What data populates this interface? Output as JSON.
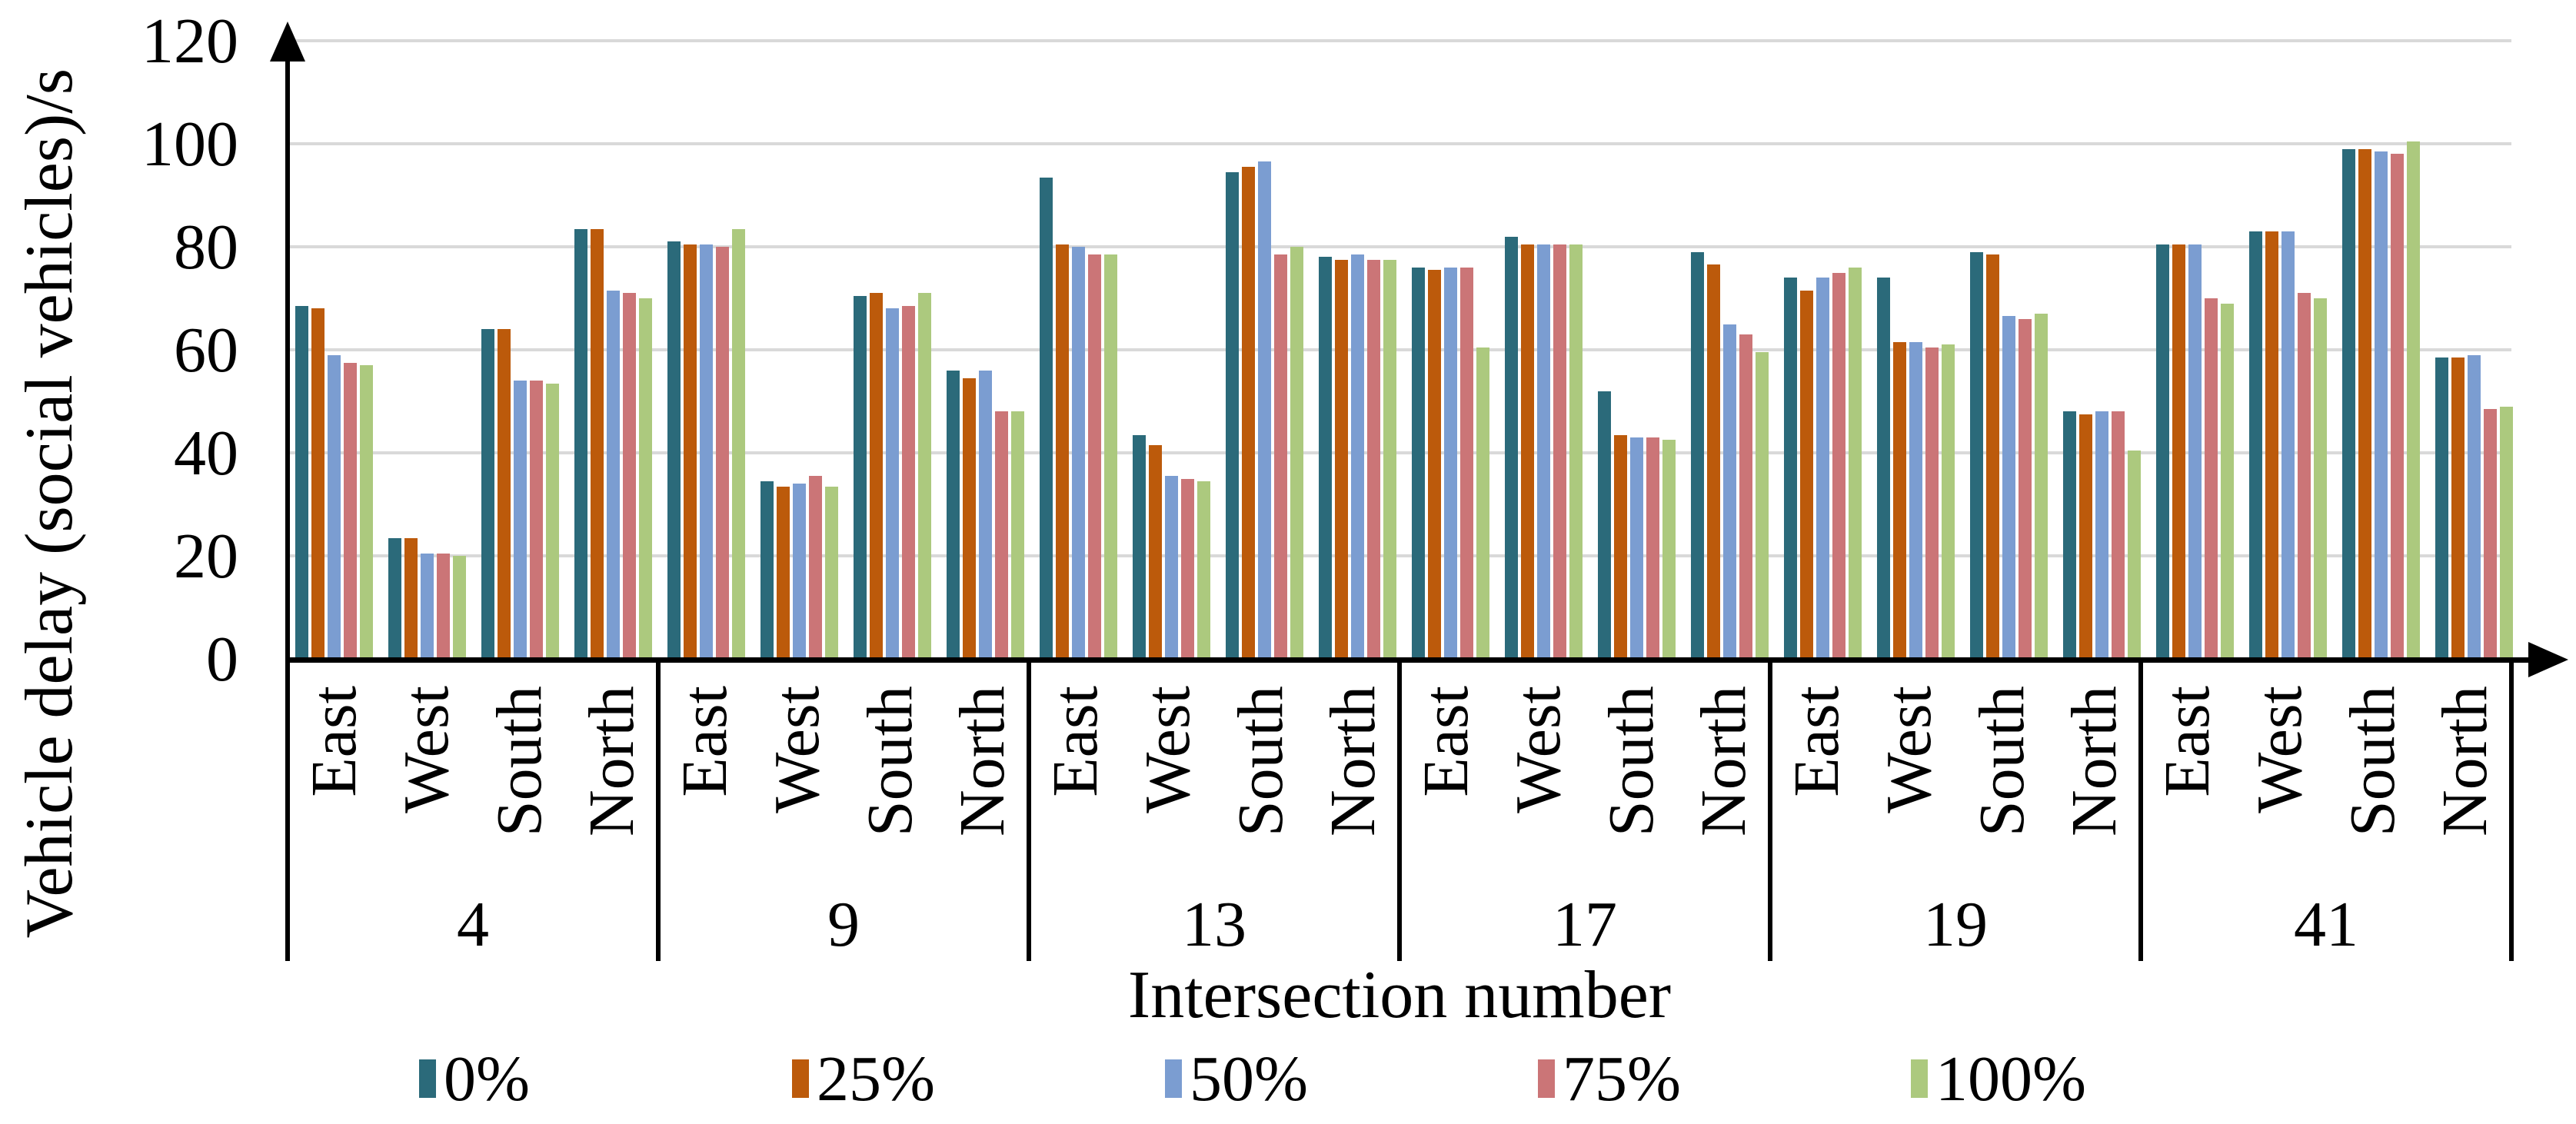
{
  "chart_data": {
    "type": "bar",
    "title": "",
    "ylabel": "Vehicle delay (social vehicles)/s",
    "xlabel": "Intersection number",
    "ylim": [
      0,
      120
    ],
    "yticks": [
      0,
      20,
      40,
      60,
      80,
      100,
      120
    ],
    "grid": "horizontal",
    "gridline_color": "#D9D9D9",
    "axis_color": "#000000",
    "legend_position": "bottom",
    "directions": [
      "East",
      "West",
      "South",
      "North"
    ],
    "series": [
      {
        "name": "0%",
        "color": "#2B6A7A"
      },
      {
        "name": "25%",
        "color": "#BC5A0B"
      },
      {
        "name": "50%",
        "color": "#7B9DD1"
      },
      {
        "name": "75%",
        "color": "#CB7577"
      },
      {
        "name": "100%",
        "color": "#ACC97E"
      }
    ],
    "groups": [
      {
        "label": "4",
        "values": [
          [
            68.5,
            68,
            59,
            57.5,
            57
          ],
          [
            23.5,
            23.5,
            20.5,
            20.5,
            20
          ],
          [
            64,
            64,
            54,
            54,
            53.5
          ],
          [
            83.5,
            83.5,
            71.5,
            71,
            70
          ]
        ]
      },
      {
        "label": "9",
        "values": [
          [
            81,
            80.5,
            80.5,
            80,
            83.5
          ],
          [
            34.5,
            33.5,
            34,
            35.5,
            33.5
          ],
          [
            70.5,
            71,
            68,
            68.5,
            71
          ],
          [
            56,
            54.5,
            56,
            48,
            48
          ]
        ]
      },
      {
        "label": "13",
        "values": [
          [
            93.5,
            80.5,
            80,
            78.5,
            78.5
          ],
          [
            43.5,
            41.5,
            35.5,
            35,
            34.5
          ],
          [
            94.5,
            95.5,
            96.5,
            78.5,
            80
          ],
          [
            78,
            77.5,
            78.5,
            77.5,
            77.5
          ]
        ]
      },
      {
        "label": "17",
        "values": [
          [
            76,
            75.5,
            76,
            76,
            60.5
          ],
          [
            82,
            80.5,
            80.5,
            80.5,
            80.5
          ],
          [
            52,
            43.5,
            43,
            43,
            42.5
          ],
          [
            79,
            76.5,
            65,
            63,
            59.5
          ]
        ]
      },
      {
        "label": "19",
        "values": [
          [
            74,
            71.5,
            74,
            75,
            76
          ],
          [
            74,
            61.5,
            61.5,
            60.5,
            61
          ],
          [
            79,
            78.5,
            66.5,
            66,
            67
          ],
          [
            48,
            47.5,
            48,
            48,
            40.5
          ]
        ]
      },
      {
        "label": "41",
        "values": [
          [
            80.5,
            80.5,
            80.5,
            70,
            69
          ],
          [
            83,
            83,
            83,
            71,
            70
          ],
          [
            99,
            99,
            98.5,
            98,
            100.5
          ],
          [
            58.5,
            58.5,
            59,
            48.5,
            49
          ]
        ]
      }
    ]
  }
}
